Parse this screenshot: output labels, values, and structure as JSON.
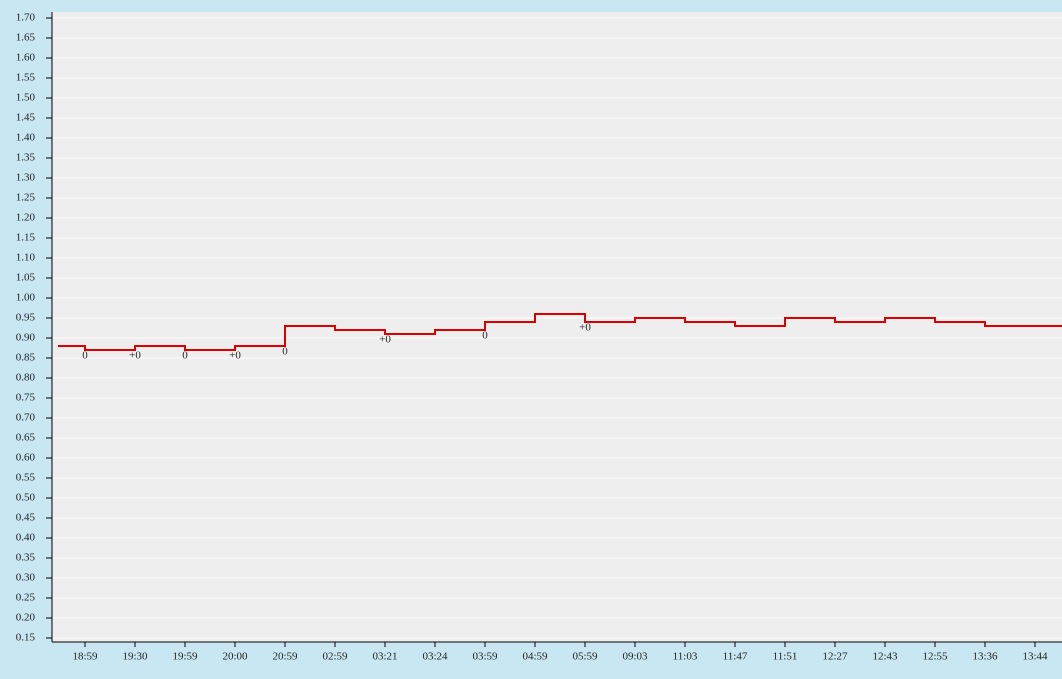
{
  "chart_data": {
    "type": "step-line",
    "categories": [
      "18:59",
      "19:30",
      "19:59",
      "20:00",
      "20:59",
      "02:59",
      "03:21",
      "03:24",
      "03:59",
      "04:59",
      "05:59",
      "09:03",
      "11:03",
      "11:47",
      "11:51",
      "12:27",
      "12:43",
      "12:55",
      "13:36",
      "13:44"
    ],
    "series": [
      {
        "color": "#dd0000",
        "values": [
          0.88,
          0.87,
          0.88,
          0.87,
          0.88,
          0.93,
          0.92,
          0.91,
          0.92,
          0.94,
          0.96,
          0.94,
          0.95,
          0.94,
          0.93,
          0.95,
          0.94,
          0.95,
          0.94,
          0.93
        ]
      }
    ],
    "annotations": [
      {
        "x": "18:59",
        "text": "0"
      },
      {
        "x": "19:30",
        "text": "+0"
      },
      {
        "x": "19:59",
        "text": "0"
      },
      {
        "x": "20:00",
        "text": "+0"
      },
      {
        "x": "20:59",
        "text": "0"
      },
      {
        "x": "03:21",
        "text": "+0"
      },
      {
        "x": "03:59",
        "text": "0"
      },
      {
        "x": "05:59",
        "text": "+0"
      }
    ],
    "ylim": [
      0.15,
      1.7
    ],
    "yticks": [
      {
        "value": 0.15,
        "label": "0.15"
      },
      {
        "value": 0.2,
        "label": "0.20"
      },
      {
        "value": 0.25,
        "label": "0.25"
      },
      {
        "value": 0.3,
        "label": "0.30"
      },
      {
        "value": 0.35,
        "label": "0.35"
      },
      {
        "value": 0.4,
        "label": "0.40"
      },
      {
        "value": 0.45,
        "label": "0.45"
      },
      {
        "value": 0.5,
        "label": "0.50"
      },
      {
        "value": 0.55,
        "label": "0.55"
      },
      {
        "value": 0.6,
        "label": "0.60"
      },
      {
        "value": 0.65,
        "label": "0.65"
      },
      {
        "value": 0.7,
        "label": "0.70"
      },
      {
        "value": 0.75,
        "label": "0.75"
      },
      {
        "value": 0.8,
        "label": "0.80"
      },
      {
        "value": 0.85,
        "label": "0.85"
      },
      {
        "value": 0.9,
        "label": "0.90"
      },
      {
        "value": 0.95,
        "label": "0.95"
      },
      {
        "value": 1.0,
        "label": "1.00"
      },
      {
        "value": 1.05,
        "label": "1.05"
      },
      {
        "value": 1.1,
        "label": "1.10"
      },
      {
        "value": 1.15,
        "label": "1.15"
      },
      {
        "value": 1.2,
        "label": "1.20"
      },
      {
        "value": 1.25,
        "label": "1.25"
      },
      {
        "value": 1.3,
        "label": "1.30"
      },
      {
        "value": 1.35,
        "label": "1.35"
      },
      {
        "value": 1.4,
        "label": "1.40"
      },
      {
        "value": 1.45,
        "label": "1.45"
      },
      {
        "value": 1.5,
        "label": "1.50"
      },
      {
        "value": 1.55,
        "label": "1.55"
      },
      {
        "value": 1.6,
        "label": "1.60"
      },
      {
        "value": 1.65,
        "label": "1.65"
      },
      {
        "value": 1.7,
        "label": "1.70"
      }
    ],
    "grid": true
  }
}
